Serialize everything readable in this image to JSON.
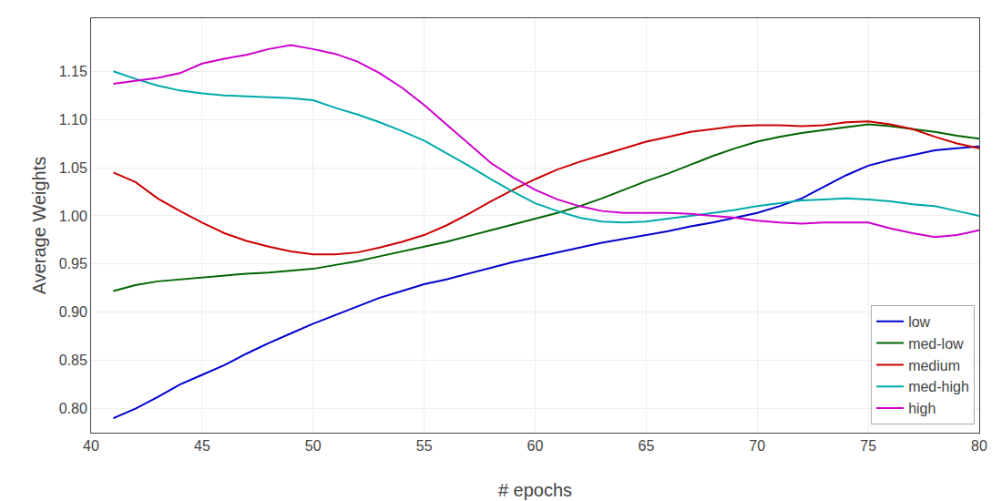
{
  "chart_data": {
    "type": "line",
    "xlabel": "# epochs",
    "ylabel": "Average Weights",
    "x": [
      41,
      42,
      43,
      44,
      45,
      46,
      47,
      48,
      49,
      50,
      51,
      52,
      53,
      54,
      55,
      56,
      57,
      58,
      59,
      60,
      61,
      62,
      63,
      64,
      65,
      66,
      67,
      68,
      69,
      70,
      71,
      72,
      73,
      74,
      75,
      76,
      77,
      78,
      79,
      80
    ],
    "series": [
      {
        "name": "low",
        "color": "#0000CC",
        "values": [
          0.79,
          0.8,
          0.812,
          0.825,
          0.835,
          0.845,
          0.857,
          0.868,
          0.878,
          0.888,
          0.897,
          0.906,
          0.915,
          0.922,
          0.929,
          0.934,
          0.94,
          0.946,
          0.952,
          0.957,
          0.962,
          0.967,
          0.972,
          0.976,
          0.98,
          0.984,
          0.989,
          0.993,
          0.998,
          1.003,
          1.01,
          1.018,
          1.03,
          1.042,
          1.052,
          1.058,
          1.063,
          1.068,
          1.07,
          1.072
        ]
      },
      {
        "name": "med-low",
        "color": "#006400",
        "values": [
          0.922,
          0.928,
          0.932,
          0.934,
          0.936,
          0.938,
          0.94,
          0.941,
          0.943,
          0.945,
          0.949,
          0.953,
          0.958,
          0.963,
          0.968,
          0.973,
          0.979,
          0.985,
          0.991,
          0.997,
          1.003,
          1.01,
          1.018,
          1.027,
          1.036,
          1.044,
          1.053,
          1.062,
          1.07,
          1.077,
          1.082,
          1.086,
          1.089,
          1.092,
          1.095,
          1.093,
          1.09,
          1.087,
          1.083,
          1.08
        ]
      },
      {
        "name": "medium",
        "color": "#CC0000",
        "values": [
          1.045,
          1.035,
          1.018,
          1.005,
          0.993,
          0.982,
          0.974,
          0.968,
          0.963,
          0.96,
          0.96,
          0.962,
          0.967,
          0.973,
          0.98,
          0.99,
          1.002,
          1.015,
          1.027,
          1.038,
          1.048,
          1.056,
          1.063,
          1.07,
          1.077,
          1.082,
          1.087,
          1.09,
          1.093,
          1.094,
          1.094,
          1.093,
          1.094,
          1.097,
          1.098,
          1.095,
          1.09,
          1.082,
          1.075,
          1.07
        ]
      },
      {
        "name": "med-high",
        "color": "#00AAAA",
        "values": [
          1.15,
          1.142,
          1.135,
          1.13,
          1.127,
          1.125,
          1.124,
          1.123,
          1.122,
          1.12,
          1.112,
          1.105,
          1.097,
          1.088,
          1.078,
          1.065,
          1.052,
          1.038,
          1.025,
          1.013,
          1.005,
          0.998,
          0.994,
          0.993,
          0.994,
          0.997,
          1.0,
          1.003,
          1.006,
          1.01,
          1.013,
          1.016,
          1.017,
          1.018,
          1.017,
          1.015,
          1.012,
          1.01,
          1.005,
          1.0
        ]
      },
      {
        "name": "high",
        "color": "#CC00CC",
        "values": [
          1.137,
          1.14,
          1.143,
          1.148,
          1.158,
          1.163,
          1.167,
          1.173,
          1.177,
          1.173,
          1.168,
          1.16,
          1.148,
          1.133,
          1.115,
          1.095,
          1.075,
          1.055,
          1.04,
          1.027,
          1.017,
          1.01,
          1.005,
          1.003,
          1.003,
          1.003,
          1.002,
          1.0,
          0.998,
          0.995,
          0.993,
          0.992,
          0.993,
          0.993,
          0.993,
          0.987,
          0.982,
          0.978,
          0.98,
          0.985
        ]
      }
    ],
    "xlim": [
      40,
      80
    ],
    "xticks": [
      40,
      45,
      50,
      55,
      60,
      65,
      70,
      75,
      80
    ],
    "ylim": [
      0.775,
      1.205
    ],
    "yticks": [
      {
        "value": 0.8,
        "label": "0.80"
      },
      {
        "value": 0.85,
        "label": "0.85"
      },
      {
        "value": 0.9,
        "label": "0.90"
      },
      {
        "value": 0.95,
        "label": "0.95"
      },
      {
        "value": 1.0,
        "label": "1.00"
      },
      {
        "value": 1.05,
        "label": "1.05"
      },
      {
        "value": 1.1,
        "label": "1.10"
      },
      {
        "value": 1.15,
        "label": "1.15"
      }
    ],
    "grid": true,
    "legend": "lower right"
  }
}
